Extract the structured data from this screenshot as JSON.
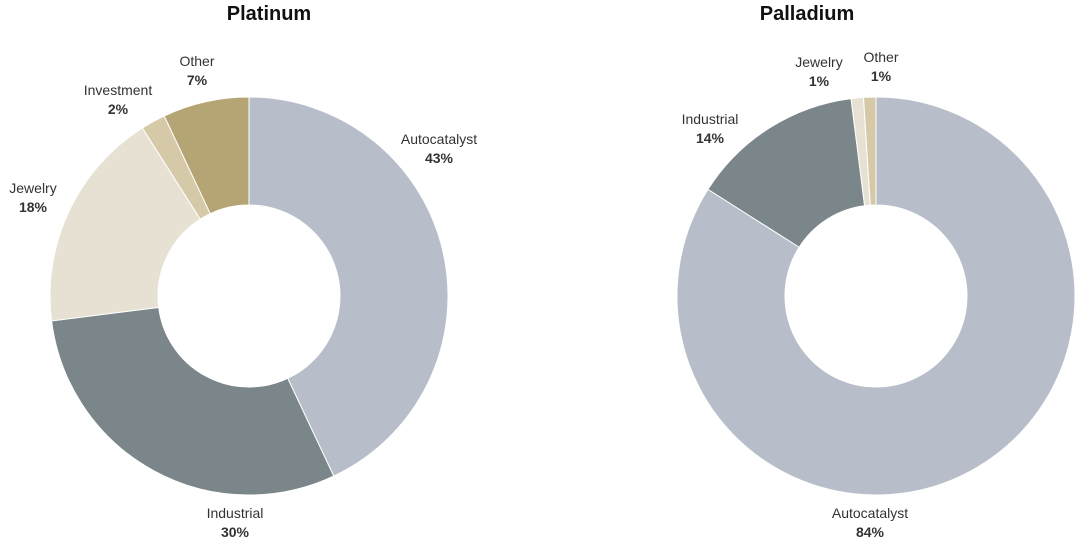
{
  "chart_data": [
    {
      "type": "pie",
      "title": "Platinum",
      "categories": [
        "Autocatalyst",
        "Industrial",
        "Jewelry",
        "Investment",
        "Other"
      ],
      "values": [
        43,
        30,
        18,
        2,
        7
      ],
      "value_labels": [
        "43%",
        "30%",
        "18%",
        "2%",
        "7%"
      ],
      "colors": [
        "#b7bec9",
        "#7b868a",
        "#e7e1d3",
        "#d6c9a8",
        "#b5a574"
      ],
      "style": "donut"
    },
    {
      "type": "pie",
      "title": "Palladium",
      "categories": [
        "Autocatalyst",
        "Industrial",
        "Jewelry",
        "Other"
      ],
      "values": [
        84,
        14,
        1,
        1
      ],
      "value_labels": [
        "84%",
        "14%",
        "1%",
        "1%"
      ],
      "colors": [
        "#b7bec9",
        "#7b868a",
        "#e7e1d3",
        "#d6c9a8"
      ],
      "style": "donut"
    }
  ]
}
